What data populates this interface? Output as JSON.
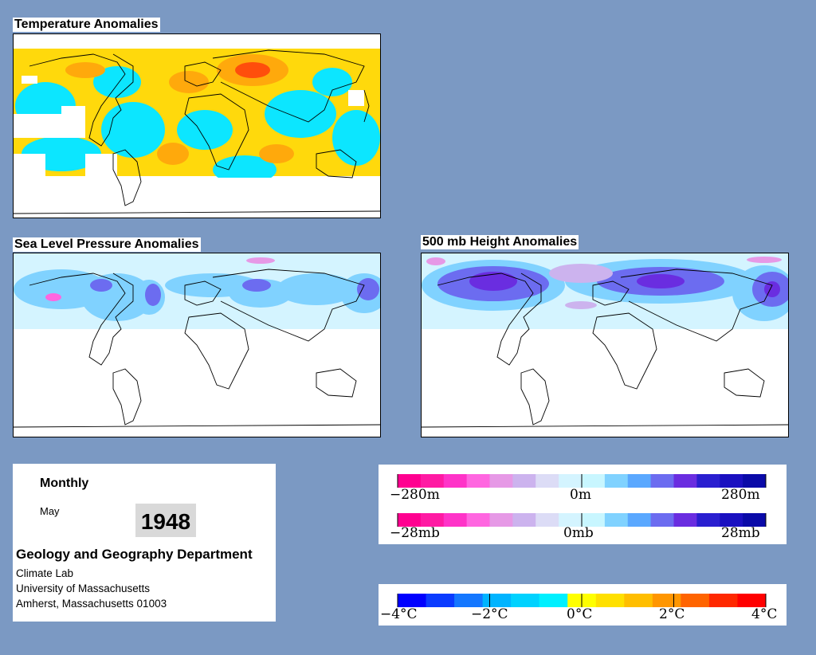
{
  "panels": {
    "temperature": {
      "title": "Temperature Anomalies"
    },
    "slp": {
      "title": "Sea Level Pressure Anomalies"
    },
    "height": {
      "title": "500 mb Height Anomalies"
    }
  },
  "info": {
    "frequency": "Monthly",
    "month": "May",
    "year": "1948",
    "department": "Geology and Geography Department",
    "lab": "Climate Lab",
    "university": "University of Massachusetts",
    "address": "Amherst, Massachusetts 01003"
  },
  "legends": {
    "height": {
      "labels": [
        "−280m",
        "0m",
        "280m"
      ]
    },
    "pressure": {
      "labels": [
        "−28mb",
        "0mb",
        "28mb"
      ]
    },
    "temperature": {
      "labels": [
        "−4°C",
        "−2°C",
        "0°C",
        "2°C",
        "4°C"
      ]
    }
  },
  "colors": {
    "background": "#7b99c3",
    "warm_light": "#ffd700",
    "warm_mid": "#ffa500",
    "warm_strong": "#ff4500",
    "cool_light": "#00e5ff",
    "cool_mid": "#3399ff",
    "negative_pink": "#ff2fa0",
    "positive_blue": "#2a1fd0"
  },
  "diverging_scale": [
    "#ff0090",
    "#ff1aa3",
    "#ff33c8",
    "#ff66e0",
    "#e699e6",
    "#ccb3ee",
    "#dcdcf6",
    "#d4f4ff",
    "#c8f6ff",
    "#80d2ff",
    "#5aa8ff",
    "#6c6cf0",
    "#6a2de0",
    "#2a1fd0",
    "#1a10c0",
    "#0a0aa8"
  ],
  "temperature_scale": [
    "#0000ff",
    "#0a3bff",
    "#1477ff",
    "#00b4ff",
    "#00d2ff",
    "#00f0ff",
    "#ffff00",
    "#ffe000",
    "#ffbe00",
    "#ff9600",
    "#ff6400",
    "#ff2800",
    "#ff0000"
  ]
}
